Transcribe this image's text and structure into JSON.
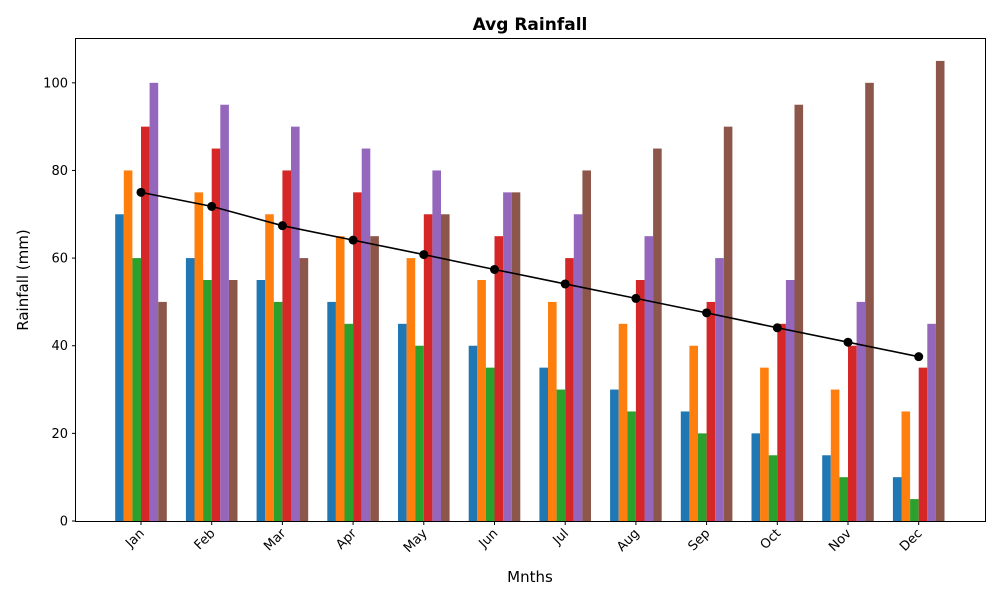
{
  "chart_data": {
    "type": "bar",
    "title": "Avg Rainfall",
    "xlabel": "Mnths",
    "ylabel": "Rainfall (mm)",
    "categories": [
      "Jan",
      "Feb",
      "Mar",
      "Apr",
      "May",
      "Jun",
      "Jul",
      "Aug",
      "Sep",
      "Oct",
      "Nov",
      "Dec"
    ],
    "ylim": [
      0,
      110
    ],
    "yticks": [
      "0",
      "20",
      "40",
      "60",
      "80",
      "100"
    ],
    "grid": false,
    "legend": "none",
    "series": [
      {
        "color": "#1f77b4",
        "values": [
          70,
          60,
          55,
          50,
          45,
          40,
          35,
          30,
          25,
          20,
          15,
          10
        ]
      },
      {
        "color": "#ff7f0e",
        "values": [
          80,
          75,
          70,
          65,
          60,
          55,
          50,
          45,
          40,
          35,
          30,
          25
        ]
      },
      {
        "color": "#2ca02c",
        "values": [
          60,
          55,
          50,
          45,
          40,
          35,
          30,
          25,
          20,
          15,
          10,
          5
        ]
      },
      {
        "color": "#d62728",
        "values": [
          90,
          85,
          80,
          75,
          70,
          65,
          60,
          55,
          50,
          45,
          40,
          35
        ]
      },
      {
        "color": "#9467bd",
        "values": [
          100,
          95,
          90,
          85,
          80,
          75,
          70,
          65,
          60,
          55,
          50,
          45
        ]
      },
      {
        "color": "#8c564b",
        "values": [
          50,
          55,
          60,
          65,
          70,
          75,
          80,
          85,
          90,
          95,
          100,
          105
        ]
      }
    ],
    "line": {
      "type": "line",
      "color": "#000000",
      "marker": "circle",
      "values": [
        75,
        71.8,
        67.4,
        64.1,
        60.8,
        57.4,
        54.1,
        50.8,
        47.5,
        44.1,
        40.8,
        37.5
      ]
    }
  }
}
